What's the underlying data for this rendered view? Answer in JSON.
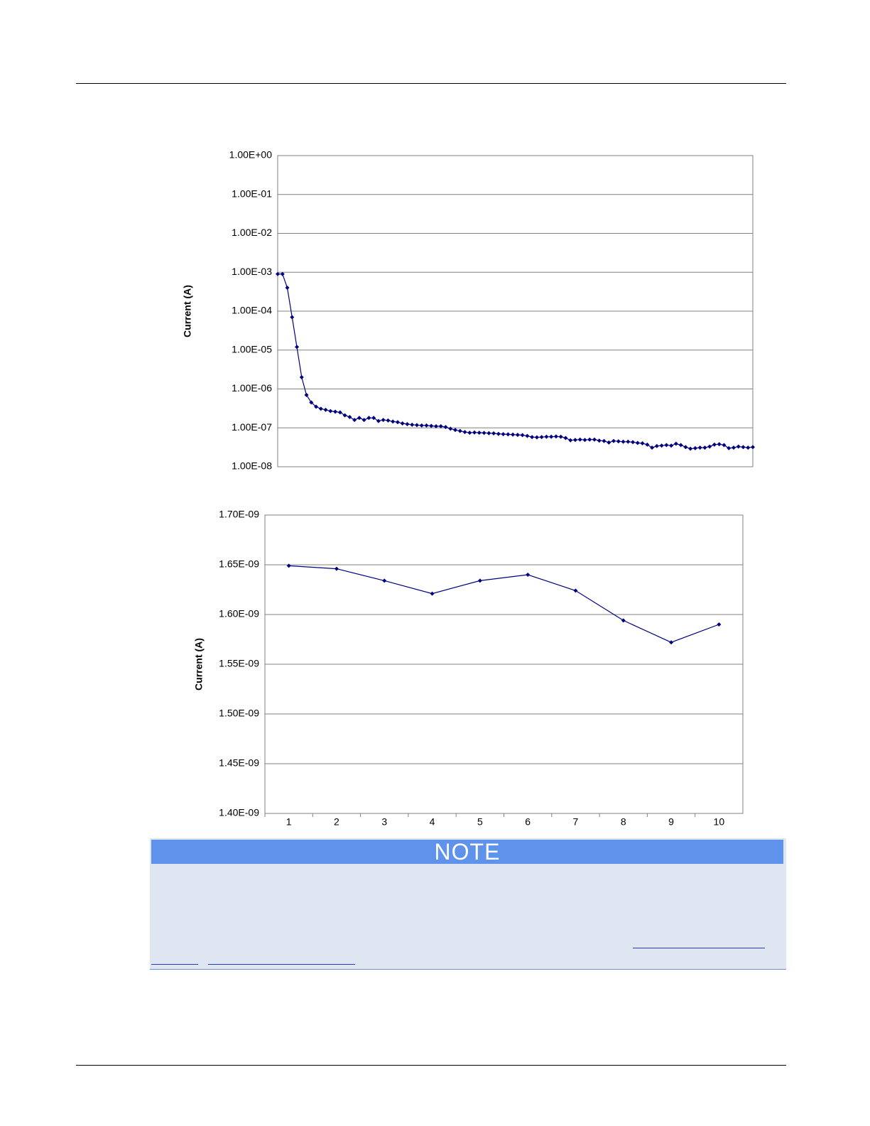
{
  "chart_data": [
    {
      "type": "line",
      "log": true,
      "grid": true,
      "color": "#000080",
      "y_label": "Current (A)",
      "ylim": [
        1e-08,
        1
      ],
      "yticks": [
        {
          "value": 1,
          "label": "1.00E+00"
        },
        {
          "value": 0.1,
          "label": "1.00E-01"
        },
        {
          "value": 0.01,
          "label": "1.00E-02"
        },
        {
          "value": 0.001,
          "label": "1.00E-03"
        },
        {
          "value": 0.0001,
          "label": "1.00E-04"
        },
        {
          "value": 1e-05,
          "label": "1.00E-05"
        },
        {
          "value": 1e-06,
          "label": "1.00E-06"
        },
        {
          "value": 1e-07,
          "label": "1.00E-07"
        },
        {
          "value": 1e-08,
          "label": "1.00E-08"
        }
      ],
      "values": [
        0.0009,
        0.0009,
        0.0004,
        7e-05,
        1.2e-05,
        2e-06,
        7e-07,
        4.5e-07,
        3.5e-07,
        3.1e-07,
        2.9e-07,
        2.7e-07,
        2.6e-07,
        2.5e-07,
        2.1e-07,
        1.9e-07,
        1.6e-07,
        1.8e-07,
        1.6e-07,
        1.8e-07,
        1.8e-07,
        1.5e-07,
        1.6e-07,
        1.55e-07,
        1.45e-07,
        1.4e-07,
        1.3e-07,
        1.25e-07,
        1.2e-07,
        1.18e-07,
        1.15e-07,
        1.15e-07,
        1.12e-07,
        1.1e-07,
        1.1e-07,
        1.05e-07,
        9.5e-08,
        8.8e-08,
        8.3e-08,
        7.8e-08,
        7.5e-08,
        7.6e-08,
        7.5e-08,
        7.4e-08,
        7.3e-08,
        7.2e-08,
        7e-08,
        6.9e-08,
        6.8e-08,
        6.7e-08,
        6.6e-08,
        6.5e-08,
        6.2e-08,
        5.8e-08,
        5.7e-08,
        5.8e-08,
        5.9e-08,
        5.9e-08,
        6e-08,
        5.9e-08,
        5.5e-08,
        4.8e-08,
        4.9e-08,
        5e-08,
        4.9e-08,
        5e-08,
        5e-08,
        4.7e-08,
        4.6e-08,
        4.2e-08,
        4.6e-08,
        4.5e-08,
        4.4e-08,
        4.4e-08,
        4.3e-08,
        4.1e-08,
        4e-08,
        3.7e-08,
        3.1e-08,
        3.4e-08,
        3.5e-08,
        3.6e-08,
        3.5e-08,
        3.9e-08,
        3.6e-08,
        3.2e-08,
        2.9e-08,
        3e-08,
        3.1e-08,
        3.1e-08,
        3.3e-08,
        3.7e-08,
        3.8e-08,
        3.6e-08,
        3e-08,
        3.1e-08,
        3.3e-08,
        3.2e-08,
        3.1e-08,
        3.2e-08
      ]
    },
    {
      "type": "line",
      "grid": true,
      "color": "#000080",
      "y_label": "Current (A)",
      "categories": [
        "1",
        "2",
        "3",
        "4",
        "5",
        "6",
        "7",
        "8",
        "9",
        "10"
      ],
      "ylim": [
        1.4e-09,
        1.7e-09
      ],
      "yticks": [
        {
          "value": 1.7e-09,
          "label": "1.70E-09"
        },
        {
          "value": 1.65e-09,
          "label": "1.65E-09"
        },
        {
          "value": 1.6e-09,
          "label": "1.60E-09"
        },
        {
          "value": 1.55e-09,
          "label": "1.55E-09"
        },
        {
          "value": 1.5e-09,
          "label": "1.50E-09"
        },
        {
          "value": 1.45e-09,
          "label": "1.45E-09"
        },
        {
          "value": 1.4e-09,
          "label": "1.40E-09"
        }
      ],
      "values": [
        1.649e-09,
        1.646e-09,
        1.634e-09,
        1.621e-09,
        1.634e-09,
        1.64e-09,
        1.624e-09,
        1.594e-09,
        1.572e-09,
        1.59e-09
      ]
    }
  ],
  "note": {
    "title": "NOTE"
  }
}
